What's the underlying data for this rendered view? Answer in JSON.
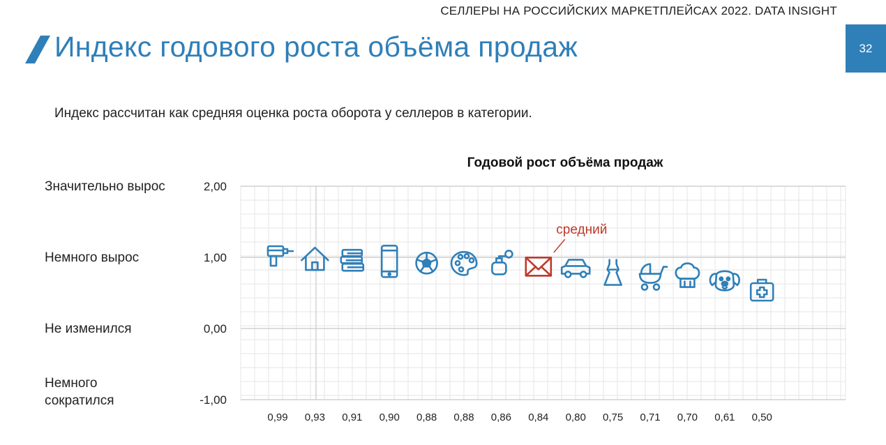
{
  "header": {
    "source": "СЕЛЛЕРЫ НА РОССИЙСКИХ МАРКЕТПЛЕЙСАХ 2022. DATA INSIGHT",
    "page_number": "32"
  },
  "title": "Индекс годового роста объёма продаж",
  "subtitle": "Индекс рассчитан как средняя оценка роста оборота у селлеров в категории.",
  "colors": {
    "accent": "#2f7fb8",
    "highlight": "#c0392b",
    "grid": "#e6e6e6"
  },
  "chart_data": {
    "type": "scatter",
    "title": "Годовой рост объёма продаж",
    "ylim": [
      -1,
      2
    ],
    "yticks": [
      {
        "value": 2,
        "label": "2,00",
        "category": "Значительно вырос"
      },
      {
        "value": 1,
        "label": "1,00",
        "category": "Немного вырос"
      },
      {
        "value": 0,
        "label": "0,00",
        "category": "Не изменился"
      },
      {
        "value": -1,
        "label": "-1,00",
        "category": "Немного сократился"
      }
    ],
    "grid": true,
    "annotation": "средний",
    "points": [
      {
        "value": 0.99,
        "label": "0,99",
        "icon": "drill-icon"
      },
      {
        "value": 0.93,
        "label": "0,93",
        "icon": "house-icon"
      },
      {
        "value": 0.91,
        "label": "0,91",
        "icon": "books-icon"
      },
      {
        "value": 0.9,
        "label": "0,90",
        "icon": "smartphone-icon"
      },
      {
        "value": 0.88,
        "label": "0,88",
        "icon": "soccer-ball-icon"
      },
      {
        "value": 0.88,
        "label": "0,88",
        "icon": "palette-icon"
      },
      {
        "value": 0.86,
        "label": "0,86",
        "icon": "perfume-icon"
      },
      {
        "value": 0.84,
        "label": "0,84",
        "icon": "envelope-icon",
        "highlight": true
      },
      {
        "value": 0.8,
        "label": "0,80",
        "icon": "car-icon"
      },
      {
        "value": 0.75,
        "label": "0,75",
        "icon": "dress-icon"
      },
      {
        "value": 0.71,
        "label": "0,71",
        "icon": "stroller-icon"
      },
      {
        "value": 0.7,
        "label": "0,70",
        "icon": "chef-hat-icon"
      },
      {
        "value": 0.61,
        "label": "0,61",
        "icon": "dog-icon"
      },
      {
        "value": 0.5,
        "label": "0,50",
        "icon": "first-aid-kit-icon"
      }
    ]
  }
}
